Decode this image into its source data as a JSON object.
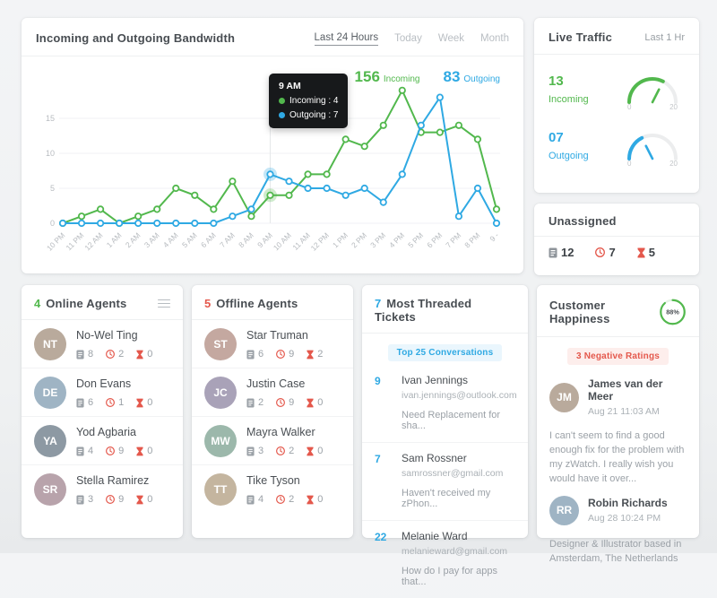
{
  "accent_colors": {
    "green": "#52b84d",
    "blue": "#2fa9e3",
    "red": "#e4584c"
  },
  "bandwidth": {
    "title": "Incoming and Outgoing Bandwidth",
    "filters": [
      {
        "label": "Last 24 Hours",
        "active": true
      },
      {
        "label": "Today",
        "active": false
      },
      {
        "label": "Week",
        "active": false
      },
      {
        "label": "Month",
        "active": false
      }
    ],
    "totals": {
      "incoming_value": "156",
      "incoming_label": "Incoming",
      "outgoing_value": "83",
      "outgoing_label": "Outgoing"
    },
    "tooltip": {
      "time": "9 AM",
      "incoming": "Incoming : 4",
      "outgoing": "Outgoing : 7"
    }
  },
  "chart_data": {
    "type": "line",
    "title": "Incoming and Outgoing Bandwidth",
    "x": [
      "10 PM",
      "11 PM",
      "12 AM",
      "1 AM",
      "2 AM",
      "3 AM",
      "4 AM",
      "5 AM",
      "6 AM",
      "7 AM",
      "8 AM",
      "9 AM",
      "10 AM",
      "11 AM",
      "12 PM",
      "1 PM",
      "2 PM",
      "3 PM",
      "4 PM",
      "5 PM",
      "6 PM",
      "7 PM",
      "8 PM",
      "9 -"
    ],
    "series": [
      {
        "name": "Incoming",
        "color": "#52b84d",
        "values": [
          0,
          1,
          2,
          0,
          1,
          2,
          5,
          4,
          2,
          6,
          1,
          4,
          4,
          7,
          7,
          12,
          11,
          14,
          19,
          13,
          13,
          14,
          12,
          2
        ]
      },
      {
        "name": "Outgoing",
        "color": "#2fa9e3",
        "values": [
          0,
          0,
          0,
          0,
          0,
          0,
          0,
          0,
          0,
          1,
          2,
          7,
          6,
          5,
          5,
          4,
          5,
          3,
          7,
          14,
          18,
          1,
          5,
          0
        ]
      }
    ],
    "ylim": [
      0,
      20
    ],
    "yticks": [
      0,
      5,
      10,
      15
    ],
    "highlight_index": 11,
    "grid": "horizontal",
    "legend_position": "top-right-totals"
  },
  "live_traffic": {
    "title": "Live Traffic",
    "period": "Last 1 Hr",
    "gauges": [
      {
        "value": "13",
        "label": "Incoming",
        "numeric": 13,
        "min": "0",
        "max": "20",
        "max_numeric": 20,
        "color": "#52b84d"
      },
      {
        "value": "07",
        "label": "Outgoing",
        "numeric": 7,
        "min": "0",
        "max": "20",
        "max_numeric": 20,
        "color": "#2fa9e3"
      }
    ]
  },
  "unassigned": {
    "title": "Unassigned",
    "stats": [
      {
        "icon": "ticket-icon",
        "value": "12"
      },
      {
        "icon": "clock-icon",
        "value": "7"
      },
      {
        "icon": "hourglass-icon",
        "value": "5"
      }
    ]
  },
  "online_agents": {
    "count": "4",
    "title": "Online Agents",
    "agents": [
      {
        "name": "No-Wel Ting",
        "tickets": "8",
        "overdue": "2",
        "escalated": "0"
      },
      {
        "name": "Don Evans",
        "tickets": "6",
        "overdue": "1",
        "escalated": "0"
      },
      {
        "name": "Yod Agbaria",
        "tickets": "4",
        "overdue": "9",
        "escalated": "0"
      },
      {
        "name": "Stella Ramirez",
        "tickets": "3",
        "overdue": "9",
        "escalated": "0"
      }
    ]
  },
  "offline_agents": {
    "count": "5",
    "title": "Offline Agents",
    "agents": [
      {
        "name": "Star Truman",
        "tickets": "6",
        "overdue": "9",
        "escalated": "2"
      },
      {
        "name": "Justin Case",
        "tickets": "2",
        "overdue": "9",
        "escalated": "0"
      },
      {
        "name": "Mayra Walker",
        "tickets": "3",
        "overdue": "2",
        "escalated": "0"
      },
      {
        "name": "Tike Tyson",
        "tickets": "4",
        "overdue": "2",
        "escalated": "0"
      }
    ]
  },
  "threaded_tickets": {
    "count": "7",
    "title": "Most Threaded Tickets",
    "badge": "Top 25 Conversations",
    "tickets": [
      {
        "count": "9",
        "name": "Ivan Jennings",
        "email": "ivan.jennings@outlook.com",
        "subject": "Need Replacement for sha..."
      },
      {
        "count": "7",
        "name": "Sam Rossner",
        "email": "samrossner@gmail.com",
        "subject": "Haven't received my zPhon..."
      },
      {
        "count": "22",
        "name": "Melanie Ward",
        "email": "melanieward@gmail.com",
        "subject": "How do I pay for apps that..."
      }
    ]
  },
  "customer_happiness": {
    "title": "Customer Happiness",
    "score": "88%",
    "score_numeric": 88,
    "badge": "3 Negative Ratings",
    "reviews": [
      {
        "name": "James van der Meer",
        "date": "Aug 21 11:03 AM",
        "text": "I can't seem to find a good enough fix for the problem with my zWatch. I really wish you would have it over..."
      },
      {
        "name": "Robin Richards",
        "date": "Aug 28 10:24 PM",
        "text": "Designer & Illustrator based in Amsterdam, The Netherlands"
      }
    ]
  }
}
